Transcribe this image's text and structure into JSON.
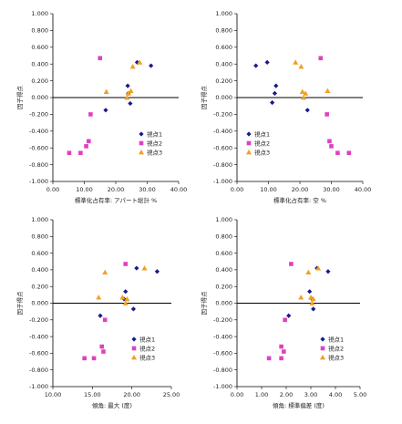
{
  "page": {
    "background": "#ffffff"
  },
  "series_styles": [
    {
      "name": "視点1",
      "marker": "diamond",
      "color": "#1a1a8c"
    },
    {
      "name": "視点2",
      "marker": "square",
      "color": "#e040c0"
    },
    {
      "name": "視点3",
      "marker": "triangle",
      "color": "#f0a020"
    }
  ],
  "chart_data": [
    {
      "type": "scatter",
      "title": "",
      "xlabel": "標準化占有率: アパート総計 %",
      "ylabel": "因子得点",
      "xlim": [
        0,
        40
      ],
      "ylim": [
        -1,
        1
      ],
      "xticks": [
        "0.00",
        "10.00",
        "20.00",
        "30.00",
        "40.00"
      ],
      "xtick_values": [
        0,
        10,
        20,
        30,
        40
      ],
      "yticks": [
        "1.000",
        "0.800",
        "0.600",
        "0.400",
        "0.200",
        "0.000",
        "-0.200",
        "-0.400",
        "-0.600",
        "-0.800",
        "-1.000"
      ],
      "ytick_values": [
        1,
        0.8,
        0.6,
        0.4,
        0.2,
        0,
        -0.2,
        -0.4,
        -0.6,
        -0.8,
        -1
      ],
      "legend_position": "bottom-right",
      "series": [
        {
          "name": "視点1",
          "points": [
            [
              16.8,
              -0.15
            ],
            [
              23.8,
              0.14
            ],
            [
              24.0,
              0.05
            ],
            [
              24.6,
              -0.07
            ],
            [
              26.8,
              0.42
            ],
            [
              31.2,
              0.38
            ]
          ]
        },
        {
          "name": "視点2",
          "points": [
            [
              5.2,
              -0.66
            ],
            [
              8.8,
              -0.66
            ],
            [
              10.6,
              -0.58
            ],
            [
              11.4,
              -0.52
            ],
            [
              12.0,
              -0.2
            ],
            [
              15.0,
              0.47
            ]
          ]
        },
        {
          "name": "視点3",
          "points": [
            [
              17.0,
              0.07
            ],
            [
              23.6,
              0.0
            ],
            [
              24.0,
              0.05
            ],
            [
              24.8,
              0.08
            ],
            [
              25.4,
              0.37
            ],
            [
              27.6,
              0.42
            ]
          ]
        }
      ]
    },
    {
      "type": "scatter",
      "title": "",
      "xlabel": "標準化占有率: 空 %",
      "ylabel": "因子得点",
      "xlim": [
        0,
        40
      ],
      "ylim": [
        -1,
        1
      ],
      "xticks": [
        "0.00",
        "10.00",
        "20.00",
        "30.00",
        "40.00"
      ],
      "xtick_values": [
        0,
        10,
        20,
        30,
        40
      ],
      "yticks": [
        "1.000",
        "0.800",
        "0.600",
        "0.400",
        "0.200",
        "0.000",
        "-0.200",
        "-0.400",
        "-0.600",
        "-0.800",
        "-1.000"
      ],
      "ytick_values": [
        1,
        0.8,
        0.6,
        0.4,
        0.2,
        0,
        -0.2,
        -0.4,
        -0.6,
        -0.8,
        -1
      ],
      "legend_position": "bottom-left",
      "series": [
        {
          "name": "視点1",
          "points": [
            [
              6.0,
              0.38
            ],
            [
              9.6,
              0.42
            ],
            [
              11.2,
              -0.06
            ],
            [
              12.0,
              0.05
            ],
            [
              12.4,
              0.14
            ],
            [
              22.4,
              -0.15
            ]
          ]
        },
        {
          "name": "視点2",
          "points": [
            [
              26.6,
              0.47
            ],
            [
              28.6,
              -0.2
            ],
            [
              29.4,
              -0.52
            ],
            [
              30.0,
              -0.58
            ],
            [
              32.0,
              -0.66
            ],
            [
              35.6,
              -0.66
            ]
          ]
        },
        {
          "name": "視点3",
          "points": [
            [
              18.6,
              0.42
            ],
            [
              20.4,
              0.37
            ],
            [
              20.8,
              0.07
            ],
            [
              21.2,
              0.0
            ],
            [
              21.8,
              0.05
            ],
            [
              28.8,
              0.08
            ]
          ]
        }
      ]
    },
    {
      "type": "scatter",
      "title": "",
      "xlabel": "傾角: 最大 (度)",
      "ylabel": "因子得点",
      "xlim": [
        10,
        25
      ],
      "ylim": [
        -1,
        1
      ],
      "xticks": [
        "10.00",
        "15.00",
        "20.00",
        "25.00"
      ],
      "xtick_values": [
        10,
        15,
        20,
        25
      ],
      "yticks": [
        "1.000",
        "0.800",
        "0.600",
        "0.400",
        "0.200",
        "0.000",
        "-0.200",
        "-0.400",
        "-0.600",
        "-0.800",
        "-1.000"
      ],
      "ytick_values": [
        1,
        0.8,
        0.6,
        0.4,
        0.2,
        0,
        -0.2,
        -0.4,
        -0.6,
        -0.8,
        -1
      ],
      "legend_position": "bottom-right",
      "series": [
        {
          "name": "視点1",
          "points": [
            [
              16.0,
              -0.15
            ],
            [
              19.0,
              0.05
            ],
            [
              19.2,
              0.14
            ],
            [
              20.2,
              -0.07
            ],
            [
              20.6,
              0.42
            ],
            [
              23.2,
              0.38
            ]
          ]
        },
        {
          "name": "視点2",
          "points": [
            [
              14.0,
              -0.66
            ],
            [
              15.2,
              -0.66
            ],
            [
              16.2,
              -0.52
            ],
            [
              16.4,
              -0.58
            ],
            [
              16.6,
              -0.2
            ],
            [
              19.2,
              0.47
            ]
          ]
        },
        {
          "name": "視点3",
          "points": [
            [
              15.8,
              0.07
            ],
            [
              16.6,
              0.37
            ],
            [
              18.8,
              0.07
            ],
            [
              19.2,
              0.0
            ],
            [
              19.4,
              0.05
            ],
            [
              21.6,
              0.42
            ]
          ]
        }
      ]
    },
    {
      "type": "scatter",
      "title": "",
      "xlabel": "傾角: 標準偏差 (度)",
      "ylabel": "因子得点",
      "xlim": [
        0,
        5
      ],
      "ylim": [
        -1,
        1
      ],
      "xticks": [
        "0.00",
        "1.00",
        "2.00",
        "3.00",
        "4.00",
        "5.00"
      ],
      "xtick_values": [
        0,
        1,
        2,
        3,
        4,
        5
      ],
      "yticks": [
        "1.000",
        "0.800",
        "0.600",
        "0.400",
        "0.200",
        "0.000",
        "-0.200",
        "-0.400",
        "-0.600",
        "-0.800",
        "-1.000"
      ],
      "ytick_values": [
        1,
        0.8,
        0.6,
        0.4,
        0.2,
        0,
        -0.2,
        -0.4,
        -0.6,
        -0.8,
        -1
      ],
      "legend_position": "bottom-right",
      "series": [
        {
          "name": "視点1",
          "points": [
            [
              2.1,
              -0.15
            ],
            [
              2.95,
              0.14
            ],
            [
              3.05,
              0.05
            ],
            [
              3.1,
              -0.07
            ],
            [
              3.25,
              0.42
            ],
            [
              3.7,
              0.38
            ]
          ]
        },
        {
          "name": "視点2",
          "points": [
            [
              1.3,
              -0.66
            ],
            [
              1.8,
              -0.66
            ],
            [
              1.8,
              -0.52
            ],
            [
              1.9,
              -0.58
            ],
            [
              1.95,
              -0.2
            ],
            [
              2.2,
              0.47
            ]
          ]
        },
        {
          "name": "視点3",
          "points": [
            [
              2.6,
              0.07
            ],
            [
              2.9,
              0.37
            ],
            [
              3.0,
              0.07
            ],
            [
              3.05,
              0.0
            ],
            [
              3.1,
              0.05
            ],
            [
              3.3,
              0.42
            ]
          ]
        }
      ]
    }
  ]
}
